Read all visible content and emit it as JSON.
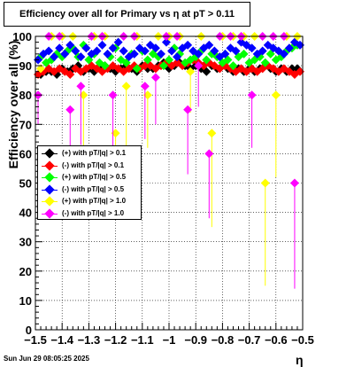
{
  "title": "Efficiency over all for Primary vs    η at pT > 0.11",
  "timestamp": "Sun Jun 29 08:05:25 2025",
  "chart_data": {
    "type": "scatter",
    "title": "Efficiency over all for Primary vs    η at pT > 0.11",
    "xlabel": "η",
    "ylabel": "Efficiency over all (%)",
    "xlim": [
      -1.5,
      -0.5
    ],
    "ylim": [
      0,
      100
    ],
    "xticks": [
      "−1.5",
      "−1.4",
      "−1.3",
      "−1.2",
      "−1.1",
      "−1",
      "−0.9",
      "−0.8",
      "−0.7",
      "−0.6",
      "−0.5"
    ],
    "yticks": [
      "0",
      "10",
      "20",
      "30",
      "40",
      "50",
      "60",
      "70",
      "80",
      "90",
      "100"
    ],
    "grid": true,
    "legend_position": "middle-left",
    "series": [
      {
        "name": "(+) with pT/|q| > 0.1",
        "color": "#000000",
        "x": [
          -1.48,
          -1.46,
          -1.44,
          -1.42,
          -1.4,
          -1.38,
          -1.36,
          -1.34,
          -1.32,
          -1.3,
          -1.28,
          -1.26,
          -1.24,
          -1.22,
          -1.2,
          -1.18,
          -1.16,
          -1.14,
          -1.12,
          -1.1,
          -1.08,
          -1.06,
          -1.04,
          -1.02,
          -1.0,
          -0.98,
          -0.96,
          -0.94,
          -0.92,
          -0.9,
          -0.88,
          -0.86,
          -0.84,
          -0.82,
          -0.8,
          -0.78,
          -0.76,
          -0.74,
          -0.72,
          -0.7,
          -0.68,
          -0.66,
          -0.64,
          -0.62,
          -0.6,
          -0.58,
          -0.56,
          -0.54,
          -0.52
        ],
        "y": [
          87,
          88,
          88,
          87,
          89,
          88,
          89,
          90,
          88,
          89,
          88,
          89,
          90,
          89,
          88,
          89,
          90,
          89,
          88,
          90,
          89,
          89,
          90,
          91,
          89,
          90,
          91,
          90,
          89,
          90,
          89,
          88,
          90,
          89,
          90,
          89,
          88,
          89,
          88,
          89,
          88,
          89,
          90,
          89,
          88,
          89,
          88,
          89,
          89
        ]
      },
      {
        "name": "(-) with pT/|q| > 0.1",
        "color": "#ff0000",
        "x": [
          -1.49,
          -1.47,
          -1.45,
          -1.43,
          -1.41,
          -1.39,
          -1.37,
          -1.35,
          -1.33,
          -1.31,
          -1.29,
          -1.27,
          -1.25,
          -1.23,
          -1.21,
          -1.19,
          -1.17,
          -1.15,
          -1.13,
          -1.11,
          -1.09,
          -1.07,
          -1.05,
          -1.03,
          -1.01,
          -0.99,
          -0.97,
          -0.95,
          -0.93,
          -0.91,
          -0.89,
          -0.87,
          -0.85,
          -0.83,
          -0.81,
          -0.79,
          -0.77,
          -0.75,
          -0.73,
          -0.71,
          -0.69,
          -0.67,
          -0.65,
          -0.63,
          -0.61,
          -0.59,
          -0.57,
          -0.55,
          -0.53,
          -0.51
        ],
        "y": [
          87,
          88,
          89,
          88,
          89,
          88,
          87,
          89,
          88,
          89,
          90,
          89,
          88,
          89,
          90,
          89,
          88,
          89,
          90,
          89,
          90,
          90,
          89,
          90,
          91,
          90,
          91,
          90,
          91,
          92,
          91,
          90,
          91,
          90,
          89,
          90,
          89,
          88,
          89,
          88,
          89,
          88,
          89,
          90,
          89,
          88,
          89,
          88,
          87,
          88
        ]
      },
      {
        "name": "(+) with pT/|q| > 0.5",
        "color": "#00ff00",
        "x": [
          -1.48,
          -1.46,
          -1.44,
          -1.42,
          -1.4,
          -1.38,
          -1.36,
          -1.34,
          -1.32,
          -1.3,
          -1.28,
          -1.26,
          -1.24,
          -1.22,
          -1.2,
          -1.18,
          -1.16,
          -1.14,
          -1.12,
          -1.1,
          -1.08,
          -1.06,
          -1.04,
          -1.02,
          -1.0,
          -0.98,
          -0.96,
          -0.94,
          -0.92,
          -0.9,
          -0.88,
          -0.86,
          -0.84,
          -0.82,
          -0.8,
          -0.78,
          -0.76,
          -0.74,
          -0.72,
          -0.7,
          -0.68,
          -0.66,
          -0.64,
          -0.62,
          -0.6,
          -0.58,
          -0.56,
          -0.54,
          -0.52
        ],
        "y": [
          93,
          91,
          92,
          94,
          93,
          95,
          96,
          93,
          97,
          92,
          94,
          91,
          90,
          93,
          96,
          92,
          91,
          94,
          89,
          95,
          92,
          94,
          93,
          90,
          92,
          96,
          94,
          91,
          92,
          93,
          95,
          92,
          94,
          93,
          91,
          92,
          90,
          93,
          94,
          91,
          92,
          93,
          91,
          94,
          92,
          93,
          95,
          96,
          97
        ]
      },
      {
        "name": "(-) with pT/|q| > 0.5",
        "color": "#0000ff",
        "x": [
          -1.49,
          -1.47,
          -1.45,
          -1.43,
          -1.41,
          -1.39,
          -1.37,
          -1.35,
          -1.33,
          -1.31,
          -1.29,
          -1.27,
          -1.25,
          -1.23,
          -1.21,
          -1.19,
          -1.17,
          -1.15,
          -1.13,
          -1.11,
          -1.09,
          -1.07,
          -1.05,
          -1.03,
          -1.01,
          -0.99,
          -0.97,
          -0.95,
          -0.93,
          -0.91,
          -0.89,
          -0.87,
          -0.85,
          -0.83,
          -0.81,
          -0.79,
          -0.77,
          -0.75,
          -0.73,
          -0.71,
          -0.69,
          -0.67,
          -0.65,
          -0.63,
          -0.61,
          -0.59,
          -0.57,
          -0.55,
          -0.53,
          -0.51
        ],
        "y": [
          92,
          94,
          95,
          93,
          96,
          94,
          97,
          95,
          93,
          96,
          94,
          95,
          97,
          94,
          96,
          98,
          95,
          93,
          94,
          96,
          95,
          97,
          96,
          94,
          98,
          95,
          93,
          96,
          97,
          95,
          94,
          96,
          97,
          95,
          93,
          94,
          96,
          95,
          98,
          97,
          96,
          94,
          95,
          97,
          96,
          95,
          94,
          96,
          98,
          97
        ]
      },
      {
        "name": "(+) with pT/|q| > 1.0",
        "color": "#ffff00",
        "x": [
          -1.48,
          -1.44,
          -1.4,
          -1.36,
          -1.32,
          -1.28,
          -1.24,
          -1.2,
          -1.16,
          -1.12,
          -1.08,
          -1.04,
          -1.0,
          -0.96,
          -0.92,
          -0.88,
          -0.84,
          -0.8,
          -0.76,
          -0.72,
          -0.68,
          -0.64,
          -0.6,
          -0.56,
          -0.52
        ],
        "y": [
          89,
          100,
          100,
          100,
          80,
          100,
          100,
          67,
          83,
          100,
          80,
          100,
          100,
          100,
          88,
          100,
          67,
          100,
          100,
          100,
          100,
          50,
          80,
          100,
          100
        ],
        "err_low": [
          0,
          0,
          0,
          0,
          20,
          0,
          0,
          25,
          22,
          0,
          18,
          0,
          0,
          0,
          14,
          0,
          32,
          0,
          0,
          0,
          0,
          35,
          28,
          0,
          0
        ]
      },
      {
        "name": "(-) with pT/|q| > 1.0",
        "color": "#ff00ff",
        "x": [
          -1.49,
          -1.45,
          -1.41,
          -1.37,
          -1.33,
          -1.29,
          -1.25,
          -1.21,
          -1.17,
          -1.13,
          -1.09,
          -1.05,
          -1.01,
          -0.97,
          -0.93,
          -0.89,
          -0.85,
          -0.81,
          -0.77,
          -0.73,
          -0.69,
          -0.65,
          -0.61,
          -0.57,
          -0.53
        ],
        "y": [
          80,
          100,
          100,
          75,
          83,
          100,
          100,
          80,
          100,
          100,
          83,
          86,
          100,
          100,
          75,
          90,
          60,
          100,
          100,
          100,
          80,
          100,
          100,
          100,
          50
        ],
        "err_low": [
          10,
          0,
          0,
          22,
          20,
          0,
          0,
          25,
          0,
          0,
          18,
          16,
          0,
          0,
          22,
          14,
          22,
          0,
          0,
          0,
          18,
          0,
          0,
          0,
          36
        ]
      }
    ]
  }
}
